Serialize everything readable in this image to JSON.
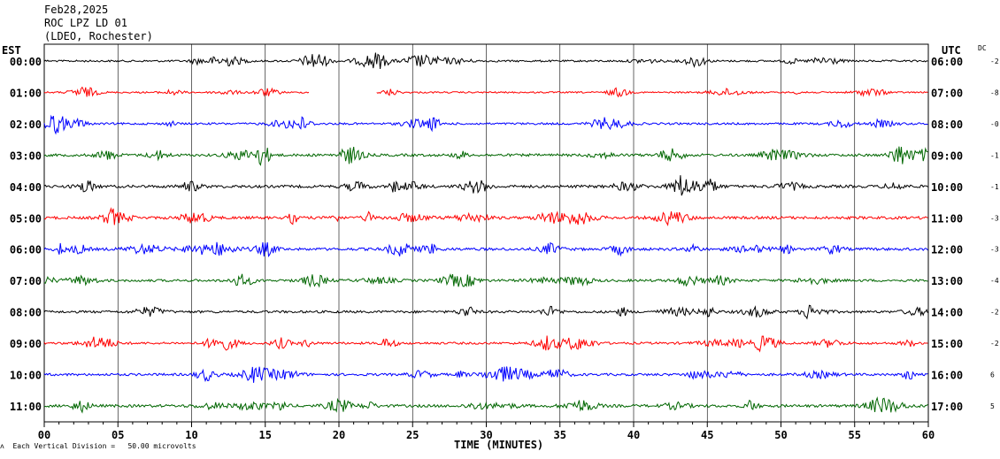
{
  "header": {
    "date": "Feb28,2025",
    "station": "ROC LPZ LD 01",
    "network": "(LDEO, Rochester)"
  },
  "left_tz_label": "EST",
  "right_tz_label": "UTC",
  "dc_label": "DC",
  "footer": "Each Vertical Division =   50.00 microvolts",
  "footer_icon": "scale-marker-icon",
  "chart_data": {
    "type": "line",
    "title": "",
    "xlabel": "TIME (MINUTES)",
    "ylabel": "",
    "xlim": [
      0,
      60
    ],
    "x_ticks": [
      "00",
      "05",
      "10",
      "15",
      "20",
      "25",
      "30",
      "35",
      "40",
      "45",
      "50",
      "55",
      "60"
    ],
    "grid": "vertical every 5 minutes",
    "colors_cycle": [
      "#000000",
      "#ff0000",
      "#0000ff",
      "#006600"
    ],
    "rows": [
      {
        "est": "00:00",
        "utc": "06:00",
        "dc": "-2",
        "color": "#000000",
        "amplitude": 0.55,
        "gaps": []
      },
      {
        "est": "01:00",
        "utc": "07:00",
        "dc": "-8",
        "color": "#ff0000",
        "amplitude": 0.45,
        "gaps": [
          [
            18.0,
            22.5
          ]
        ]
      },
      {
        "est": "02:00",
        "utc": "08:00",
        "dc": "-0",
        "color": "#0000ff",
        "amplitude": 0.6,
        "gaps": []
      },
      {
        "est": "03:00",
        "utc": "09:00",
        "dc": "-1",
        "color": "#006600",
        "amplitude": 0.75,
        "gaps": []
      },
      {
        "est": "04:00",
        "utc": "10:00",
        "dc": "-1",
        "color": "#000000",
        "amplitude": 0.8,
        "gaps": []
      },
      {
        "est": "05:00",
        "utc": "11:00",
        "dc": "-3",
        "color": "#ff0000",
        "amplitude": 0.8,
        "gaps": []
      },
      {
        "est": "06:00",
        "utc": "12:00",
        "dc": "-3",
        "color": "#0000ff",
        "amplitude": 0.8,
        "gaps": []
      },
      {
        "est": "07:00",
        "utc": "13:00",
        "dc": "-4",
        "color": "#006600",
        "amplitude": 0.7,
        "gaps": []
      },
      {
        "est": "08:00",
        "utc": "14:00",
        "dc": "-2",
        "color": "#000000",
        "amplitude": 0.7,
        "gaps": []
      },
      {
        "est": "09:00",
        "utc": "15:00",
        "dc": "-2",
        "color": "#ff0000",
        "amplitude": 0.65,
        "gaps": []
      },
      {
        "est": "10:00",
        "utc": "16:00",
        "dc": "6",
        "color": "#0000ff",
        "amplitude": 0.7,
        "gaps": []
      },
      {
        "est": "11:00",
        "utc": "17:00",
        "dc": "5",
        "color": "#006600",
        "amplitude": 0.8,
        "gaps": []
      }
    ]
  }
}
